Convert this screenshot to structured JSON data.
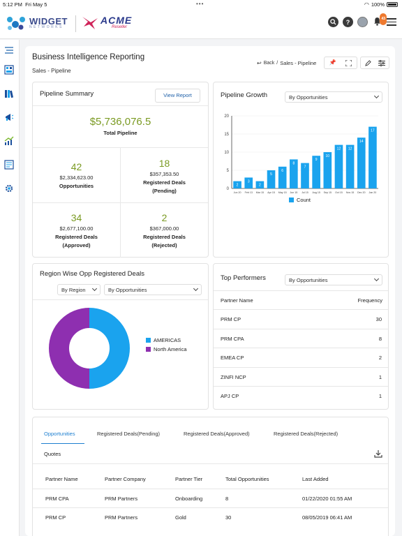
{
  "status_bar": {
    "time": "5:12 PM",
    "date": "Fri May 5",
    "battery": "100%"
  },
  "header": {
    "logo_primary": "WIDGET",
    "logo_primary_sub": "NETWORKS",
    "logo_secondary": "ACME",
    "logo_secondary_sub": "Reseller",
    "notification_count": "43",
    "icons": [
      "search-icon",
      "help-icon",
      "avatar",
      "bell-icon",
      "menu-icon"
    ]
  },
  "sidebar": {
    "items": [
      "menu-icon",
      "dashboard-icon",
      "library-icon",
      "campaign-icon",
      "growth-icon",
      "report-icon",
      "settings-icon"
    ]
  },
  "page": {
    "title": "Business Intelligence Reporting",
    "subtitle": "Sales - Pipeline",
    "back_label": "Back",
    "breadcrumb_current": "Sales - Pipeline"
  },
  "pipeline_summary": {
    "title": "Pipeline Summary",
    "view_report_label": "View Report",
    "total_value": "$5,736,076.5",
    "total_label": "Total Pipeline",
    "opportunities": {
      "count": "42",
      "amount": "$2,334,623.00",
      "label": "Opportunities"
    },
    "pending": {
      "count": "18",
      "amount": "$357,353.50",
      "label_1": "Registered Deals",
      "label_2": "(Pending)"
    },
    "approved": {
      "count": "34",
      "amount": "$2,677,100.00",
      "label_1": "Registered Deals",
      "label_2": "(Approved)"
    },
    "rejected": {
      "count": "2",
      "amount": "$367,000.00",
      "label_1": "Registered Deals",
      "label_2": "(Rejected)"
    }
  },
  "pipeline_growth": {
    "title": "Pipeline Growth",
    "filter": "By Opportunities",
    "legend": "Count"
  },
  "chart_data": {
    "type": "bar",
    "categories": [
      "Jun 20",
      "Feb 13",
      "Mar 15",
      "Apr 15",
      "May 15",
      "Jun 15",
      "Jul 15",
      "Aug 15",
      "Sep 15",
      "Oct 15",
      "Nov 15",
      "Dec 20",
      "Jan 20"
    ],
    "values": [
      2,
      3,
      2,
      5,
      6,
      8,
      7,
      9,
      10,
      12,
      12,
      14,
      17
    ],
    "ylim": [
      0,
      20
    ],
    "yticks": [
      0,
      5,
      10,
      15,
      20
    ],
    "series": [
      {
        "name": "Count",
        "color": "#1aa3ee"
      }
    ]
  },
  "region": {
    "title": "Region Wise Opp Registered Deals",
    "filter_1": "By Region",
    "filter_2": "By Opportunities",
    "donut": [
      {
        "name": "AMERICAS",
        "value": 50,
        "color": "#1aa3ee"
      },
      {
        "name": "North America",
        "value": 50,
        "color": "#8e2fb0"
      }
    ]
  },
  "top_performers": {
    "title": "Top Performers",
    "filter": "By Opportunities",
    "headers": [
      "Partner Name",
      "Frequency"
    ],
    "rows": [
      [
        "PRM CP",
        "30"
      ],
      [
        "PRM CPA",
        "8"
      ],
      [
        "EMEA CP",
        "2"
      ],
      [
        "ZINFI NCP",
        "1"
      ],
      [
        "APJ CP",
        "1"
      ]
    ]
  },
  "bottom": {
    "tabs": [
      "Opportunities",
      "Registered Deals(Pending)",
      "Registered Deals(Approved)",
      "Registered Deals(Rejected)"
    ],
    "quotes_label": "Quotes",
    "headers": [
      "Partner Name",
      "Partner Company",
      "Partner Tier",
      "Total Opportunities",
      "Last Added"
    ],
    "rows": [
      [
        "PRM CPA",
        "PRM Partners",
        "Onboarding",
        "8",
        "01/22/2020 01:55 AM"
      ],
      [
        "PRM CP",
        "PRM Partners",
        "Gold",
        "30",
        "08/05/2019 06:41 AM"
      ]
    ]
  }
}
